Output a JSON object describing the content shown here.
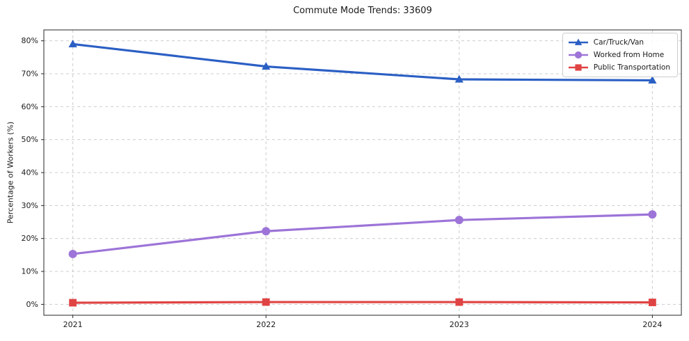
{
  "chart_data": {
    "type": "line",
    "title": "Commute Mode Trends: 33609",
    "xlabel": "",
    "ylabel": "Percentage of Workers (%)",
    "x": [
      2021,
      2022,
      2023,
      2024
    ],
    "x_tick_labels": [
      "2021",
      "2022",
      "2023",
      "2024"
    ],
    "y_ticks": [
      0,
      10,
      20,
      30,
      40,
      50,
      60,
      70,
      80
    ],
    "y_tick_labels": [
      "0%",
      "10%",
      "20%",
      "30%",
      "40%",
      "50%",
      "60%",
      "70%",
      "80%"
    ],
    "xlim": [
      2020.85,
      2024.15
    ],
    "ylim": [
      -3.3,
      83.3
    ],
    "grid": true,
    "legend_position": "upper right",
    "series": [
      {
        "name": "Car/Truck/Van",
        "color": "#2b5fc4",
        "marker": "triangle",
        "values": [
          79.0,
          72.2,
          68.3,
          68.0
        ]
      },
      {
        "name": "Worked from Home",
        "color": "#9d74d8",
        "marker": "circle",
        "values": [
          15.3,
          22.2,
          25.6,
          27.3
        ]
      },
      {
        "name": "Public Transportation",
        "color": "#e04343",
        "marker": "square",
        "values": [
          0.5,
          0.7,
          0.7,
          0.6
        ]
      }
    ],
    "grid_color": "#cccccc",
    "spine_color": "#262626"
  }
}
